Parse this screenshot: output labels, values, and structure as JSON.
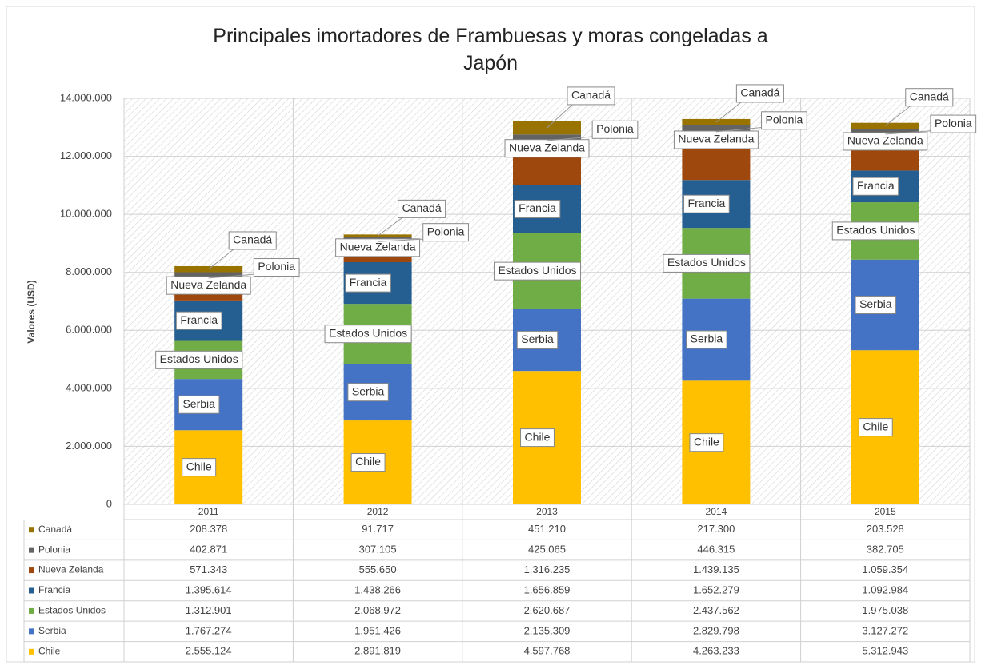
{
  "chart_data": {
    "type": "stacked_bar",
    "title": "Principales imortadores de Frambuesas y moras congeladas a Japón",
    "y_label": "Valores (USD)",
    "categories": [
      "2011",
      "2012",
      "2013",
      "2014",
      "2015"
    ],
    "ylim": [
      0,
      14000000
    ],
    "yticks": [
      0,
      {
        "value": 2000000,
        "label": "2.000.000"
      },
      {
        "value": 4000000,
        "label": "4.000.000"
      },
      {
        "value": 6000000,
        "label": "6.000.000"
      },
      {
        "value": 8000000,
        "label": "8.000.000"
      },
      {
        "value": 10000000,
        "label": "10.000.000"
      },
      {
        "value": 12000000,
        "label": "12.000.000"
      },
      {
        "value": 14000000,
        "label": "14.000.000"
      }
    ],
    "grid": true,
    "series": [
      {
        "name": "Chile",
        "color": "#ffc000",
        "values": [
          2555124,
          2891819,
          4597768,
          4263233,
          5312943
        ],
        "value_labels": [
          "2.555.124",
          "2.891.819",
          "4.597.768",
          "4.263.233",
          "5.312.943"
        ]
      },
      {
        "name": "Serbia",
        "color": "#4472c4",
        "values": [
          1767274,
          1951426,
          2135309,
          2829798,
          3127272
        ],
        "value_labels": [
          "1.767.274",
          "1.951.426",
          "2.135.309",
          "2.829.798",
          "3.127.272"
        ]
      },
      {
        "name": "Estados Unidos",
        "color": "#70ad47",
        "values": [
          1312901,
          2068972,
          2620687,
          2437562,
          1975038
        ],
        "value_labels": [
          "1.312.901",
          "2.068.972",
          "2.620.687",
          "2.437.562",
          "1.975.038"
        ]
      },
      {
        "name": "Francia",
        "color": "#255e91",
        "values": [
          1395614,
          1438266,
          1656859,
          1652279,
          1092984
        ],
        "value_labels": [
          "1.395.614",
          "1.438.266",
          "1.656.859",
          "1.652.279",
          "1.092.984"
        ]
      },
      {
        "name": "Nueva Zelanda",
        "color": "#9e480e",
        "values": [
          571343,
          555650,
          1316235,
          1439135,
          1059354
        ],
        "value_labels": [
          "571.343",
          "555.650",
          "1.316.235",
          "1.439.135",
          "1.059.354"
        ]
      },
      {
        "name": "Polonia",
        "color": "#636363",
        "values": [
          402871,
          307105,
          425065,
          446315,
          382705
        ],
        "value_labels": [
          "402.871",
          "307.105",
          "425.065",
          "446.315",
          "382.705"
        ]
      },
      {
        "name": "Canadá",
        "color": "#997300",
        "values": [
          208378,
          91717,
          451210,
          217300,
          203528
        ],
        "value_labels": [
          "208.378",
          "91.717",
          "451.210",
          "217.300",
          "203.528"
        ]
      }
    ]
  }
}
